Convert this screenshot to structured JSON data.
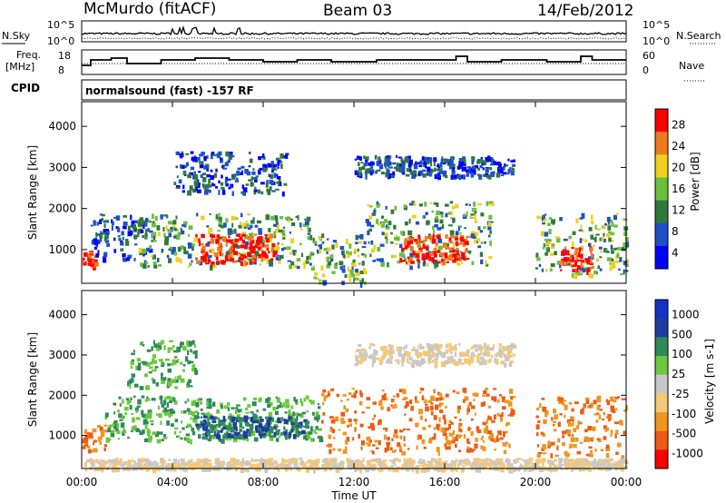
{
  "header": {
    "station": "McMurdo (fitACF)",
    "beam": "Beam 03",
    "date": "14/Feb/2012"
  },
  "strip_labels": {
    "nsky": "N.Sky",
    "nsearch": "N.Search",
    "freq_line1": "Freq.",
    "freq_line2": "[MHz]",
    "nave": "Nave",
    "cpid": "CPID",
    "cpid_value": "normalsound (fast) -157 RF",
    "noise_ticks": [
      "10^5",
      "10^0"
    ],
    "freq_ticks": [
      "18",
      "8"
    ],
    "nave_ticks": [
      "60",
      "0"
    ]
  },
  "chart_data": [
    {
      "type": "heatmap",
      "name": "power-panel",
      "ylabel": "Slant Range [km]",
      "xlabel": "Time UT",
      "x_ticks": [
        "00:00",
        "04:00",
        "08:00",
        "12:00",
        "16:00",
        "20:00",
        "00:00"
      ],
      "xlim": [
        0,
        24
      ],
      "ylim": [
        180,
        4600
      ],
      "y_ticks": [
        1000,
        2000,
        3000,
        4000
      ],
      "colorbar": {
        "label": "Power [dB]",
        "ticks": [
          "28",
          "24",
          "20",
          "16",
          "12",
          "8",
          "4"
        ],
        "range": [
          0,
          30
        ],
        "colors": [
          "#0000ff",
          "#1e50c8",
          "#2f7a3a",
          "#6cbf3c",
          "#f0d020",
          "#f07a1e",
          "#ff0000"
        ]
      },
      "echo_regions": [
        {
          "t0": 0.0,
          "t1": 0.6,
          "r0": 600,
          "r1": 1000,
          "level": "high"
        },
        {
          "t0": 0.4,
          "t1": 3.0,
          "r0": 800,
          "r1": 1900,
          "level": "low"
        },
        {
          "t0": 2.5,
          "t1": 10.0,
          "r0": 600,
          "r1": 1900,
          "level": "mid"
        },
        {
          "t0": 5.0,
          "t1": 8.5,
          "r0": 700,
          "r1": 1400,
          "level": "high"
        },
        {
          "t0": 10.0,
          "t1": 12.5,
          "r0": 180,
          "r1": 1400,
          "level": "mid"
        },
        {
          "t0": 12.5,
          "t1": 18.0,
          "r0": 600,
          "r1": 2200,
          "level": "mid"
        },
        {
          "t0": 14.0,
          "t1": 17.0,
          "r0": 700,
          "r1": 1400,
          "level": "high"
        },
        {
          "t0": 12.0,
          "t1": 19.0,
          "r0": 2800,
          "r1": 3300,
          "level": "low"
        },
        {
          "t0": 20.0,
          "t1": 24.0,
          "r0": 400,
          "r1": 1900,
          "level": "mid"
        },
        {
          "t0": 21.0,
          "t1": 22.5,
          "r0": 500,
          "r1": 1100,
          "level": "high"
        },
        {
          "t0": 4.0,
          "t1": 9.0,
          "r0": 2400,
          "r1": 3400,
          "level": "low"
        }
      ]
    },
    {
      "type": "heatmap",
      "name": "velocity-panel",
      "ylabel": "Slant Range [km]",
      "xlabel": "Time UT",
      "x_ticks": [
        "00:00",
        "04:00",
        "08:00",
        "12:00",
        "16:00",
        "20:00",
        "00:00"
      ],
      "xlim": [
        0,
        24
      ],
      "ylim": [
        180,
        4600
      ],
      "y_ticks": [
        1000,
        2000,
        3000,
        4000
      ],
      "colorbar": {
        "label": "Velocity [m s-1]",
        "ticks": [
          "1000",
          "500",
          "100",
          "25",
          "-25",
          "-100",
          "-500",
          "-1000"
        ],
        "range": [
          -1000,
          1000
        ],
        "colors": [
          "#ff0000",
          "#f05a14",
          "#f0961e",
          "#f5c878",
          "#c8c8c8",
          "#6cc83c",
          "#2f8a5a",
          "#1e3ca0",
          "#1432c8"
        ]
      },
      "echo_regions": [
        {
          "t0": 0.0,
          "t1": 1.0,
          "r0": 600,
          "r1": 1300,
          "level": "neg"
        },
        {
          "t0": 1.0,
          "t1": 10.5,
          "r0": 900,
          "r1": 2000,
          "level": "pos"
        },
        {
          "t0": 5.0,
          "t1": 10.0,
          "r0": 1000,
          "r1": 1500,
          "level": "strongpos"
        },
        {
          "t0": 10.5,
          "t1": 19.0,
          "r0": 600,
          "r1": 2200,
          "level": "neg"
        },
        {
          "t0": 12.0,
          "t1": 19.0,
          "r0": 2800,
          "r1": 3300,
          "level": "zero"
        },
        {
          "t0": 20.0,
          "t1": 24.0,
          "r0": 500,
          "r1": 2000,
          "level": "neg"
        },
        {
          "t0": 0.0,
          "t1": 24.0,
          "r0": 180,
          "r1": 450,
          "level": "zero"
        },
        {
          "t0": 2.0,
          "t1": 5.0,
          "r0": 2200,
          "r1": 3400,
          "level": "pos"
        }
      ]
    }
  ]
}
